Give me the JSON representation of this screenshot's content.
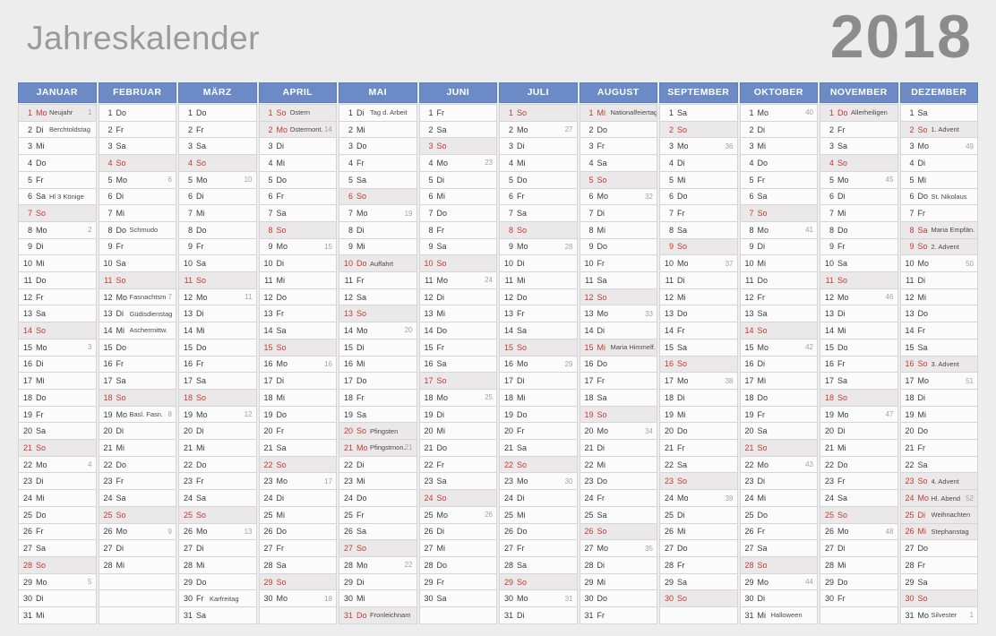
{
  "page": {
    "title": "Jahreskalender",
    "year": "2018"
  },
  "weekday_labels": [
    "Mo",
    "Di",
    "Mi",
    "Do",
    "Fr",
    "Sa",
    "So"
  ],
  "rows_per_month": 31,
  "colors": {
    "background": "#ededed",
    "header_blue": "#6b8ac6",
    "holiday_red": "#c23a30",
    "title_gray": "#9a9a9a",
    "sunday_row": "#eae8e8"
  },
  "months": [
    {
      "name": "JANUAR",
      "len": 31,
      "start": 0,
      "labels": {
        "1": "Neujahr",
        "2": "Berchtoldstag",
        "6": "Hl 3 Könige"
      },
      "red": [
        1
      ],
      "weeks": {
        "1": 1,
        "8": 2,
        "15": 3,
        "22": 4,
        "29": 5
      }
    },
    {
      "name": "FEBRUAR",
      "len": 28,
      "start": 3,
      "labels": {
        "8": "Schmudo",
        "12": "Fasnachtsm",
        "13": "Güdisdienstag",
        "14": "Aschermittw.",
        "19": "Basl. Fasn."
      },
      "red": [],
      "weeks": {
        "5": 6,
        "12": 7,
        "19": 8,
        "26": 9
      }
    },
    {
      "name": "MÄRZ",
      "len": 31,
      "start": 3,
      "labels": {
        "30": "Karfreitag"
      },
      "red": [],
      "weeks": {
        "5": 10,
        "12": 11,
        "19": 12,
        "26": 13
      }
    },
    {
      "name": "APRIL",
      "len": 30,
      "start": 6,
      "labels": {
        "1": "Ostern",
        "2": "Ostermont."
      },
      "red": [
        2
      ],
      "weeks": {
        "2": 14,
        "9": 15,
        "16": 16,
        "23": 17,
        "30": 18
      }
    },
    {
      "name": "MAI",
      "len": 31,
      "start": 1,
      "labels": {
        "1": "Tag d. Arbeit",
        "10": "Auffahrt",
        "20": "Pfingsten",
        "21": "Pfingstmon.",
        "31": "Fronleichnam"
      },
      "red": [
        10,
        21,
        31
      ],
      "weeks": {
        "7": 19,
        "14": 20,
        "21": 21,
        "28": 22
      }
    },
    {
      "name": "JUNI",
      "len": 30,
      "start": 4,
      "labels": {},
      "red": [],
      "weeks": {
        "4": 23,
        "11": 24,
        "18": 25,
        "25": 26
      }
    },
    {
      "name": "JULI",
      "len": 31,
      "start": 6,
      "labels": {},
      "red": [],
      "weeks": {
        "2": 27,
        "9": 28,
        "16": 29,
        "23": 30,
        "30": 31
      }
    },
    {
      "name": "AUGUST",
      "len": 31,
      "start": 2,
      "labels": {
        "1": "Nationalfeiertag",
        "15": "Maria Himmelf."
      },
      "red": [
        1,
        15
      ],
      "weeks": {
        "6": 32,
        "13": 33,
        "20": 34,
        "27": 35
      }
    },
    {
      "name": "SEPTEMBER",
      "len": 30,
      "start": 5,
      "labels": {},
      "red": [],
      "weeks": {
        "3": 36,
        "10": 37,
        "17": 38,
        "24": 39
      }
    },
    {
      "name": "OKTOBER",
      "len": 31,
      "start": 0,
      "labels": {
        "31": "Halloween"
      },
      "red": [],
      "weeks": {
        "1": 40,
        "8": 41,
        "15": 42,
        "22": 43,
        "29": 44
      }
    },
    {
      "name": "NOVEMBER",
      "len": 30,
      "start": 3,
      "labels": {
        "1": "Allerheiligen"
      },
      "red": [
        1
      ],
      "weeks": {
        "5": 45,
        "12": 46,
        "19": 47,
        "26": 48
      }
    },
    {
      "name": "DEZEMBER",
      "len": 31,
      "start": 5,
      "labels": {
        "2": "1. Advent",
        "6": "St. Nikolaus",
        "8": "Maria Empfän.",
        "9": "2. Advent",
        "16": "3. Advent",
        "23": "4. Advent",
        "24": "Hl. Abend",
        "25": "Weihnachten",
        "26": "Stephanstag",
        "31": "Silvester"
      },
      "red": [
        8,
        24,
        25,
        26
      ],
      "weeks": {
        "3": 49,
        "10": 50,
        "17": 51,
        "24": 52,
        "31": 1
      }
    }
  ]
}
